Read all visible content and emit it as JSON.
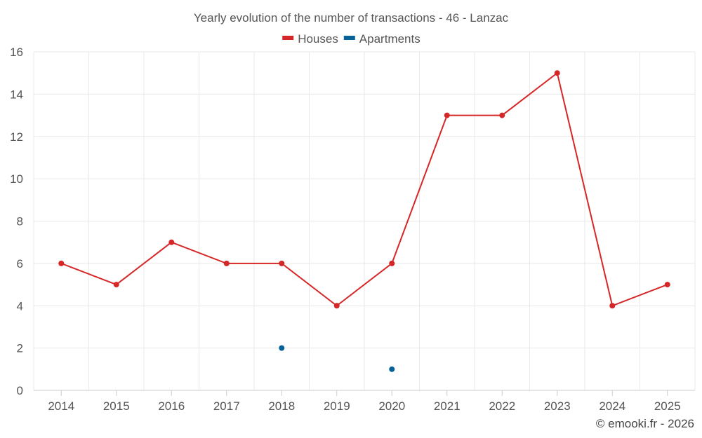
{
  "chart_data": {
    "type": "line",
    "title": "Yearly evolution of the number of transactions - 46 - Lanzac",
    "categories": [
      "2014",
      "2015",
      "2016",
      "2017",
      "2018",
      "2019",
      "2020",
      "2021",
      "2022",
      "2023",
      "2024",
      "2025"
    ],
    "series": [
      {
        "name": "Houses",
        "color": "#d62728",
        "values": [
          6,
          5,
          7,
          6,
          6,
          4,
          6,
          13,
          13,
          15,
          4,
          5
        ]
      },
      {
        "name": "Apartments",
        "color": "#08629a",
        "values": [
          null,
          null,
          null,
          null,
          2,
          null,
          1,
          null,
          null,
          null,
          null,
          null
        ]
      }
    ],
    "ylim": [
      0,
      16
    ],
    "yticks": [
      0,
      2,
      4,
      6,
      8,
      10,
      12,
      14,
      16
    ],
    "xlabel": "",
    "ylabel": "",
    "grid": true,
    "legend_position": "top-center"
  },
  "credit": "© emooki.fr - 2026"
}
